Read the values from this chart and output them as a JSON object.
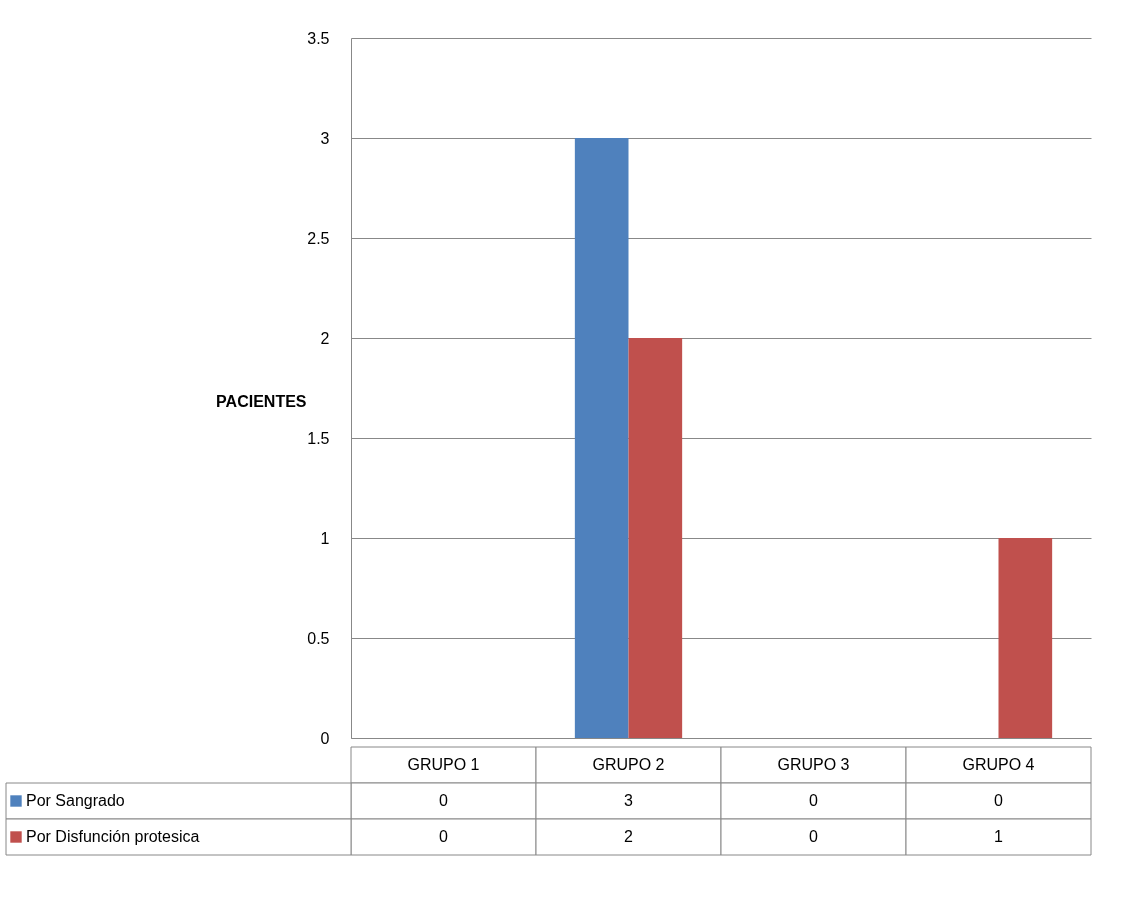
{
  "chart_data": {
    "type": "bar",
    "ylabel": "PACIENTES",
    "categories": [
      "GRUPO 1",
      "GRUPO 2",
      "GRUPO 3",
      "GRUPO 4"
    ],
    "series": [
      {
        "name": "Por Sangrado",
        "color": "#4f81bd",
        "values": [
          0,
          3,
          0,
          0
        ]
      },
      {
        "name": "Por Disfunción protesica",
        "color": "#c0504d",
        "values": [
          0,
          2,
          0,
          1
        ]
      }
    ],
    "ylim": [
      0,
      3.5
    ],
    "yticks": [
      0,
      0.5,
      1,
      1.5,
      2,
      2.5,
      3,
      3.5
    ],
    "grid": "y",
    "legend": "bottom",
    "data_labels": true
  }
}
